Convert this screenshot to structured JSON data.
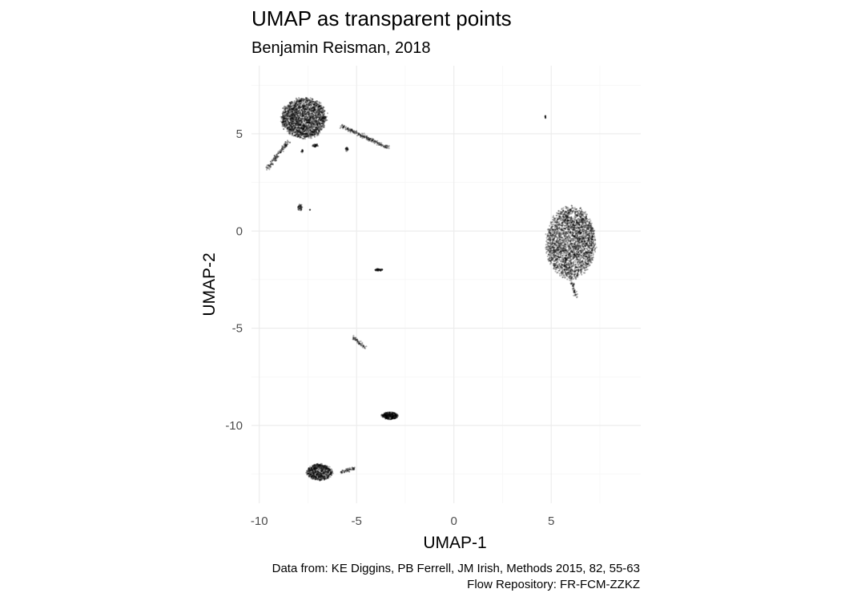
{
  "chart_data": {
    "type": "scatter",
    "title": "UMAP as transparent points",
    "subtitle": "Benjamin Reisman, 2018",
    "xlabel": "UMAP-1",
    "ylabel": "UMAP-2",
    "xlim": [
      -10.4,
      9.6
    ],
    "ylim": [
      -14.0,
      8.5
    ],
    "x_ticks": [
      -10,
      -5,
      0,
      5
    ],
    "x_tick_labels": [
      "-10",
      "-5",
      "0",
      "5"
    ],
    "y_ticks": [
      -10,
      -5,
      0,
      5
    ],
    "y_tick_labels": [
      "-10",
      "-5",
      "0",
      "5"
    ],
    "grid": true,
    "legend": "none",
    "point_color": "#000000",
    "caption": [
      "Data from: KE Diggins, PB Ferrell, JM Irish, Methods 2015, 82, 55-63",
      "Flow Repository: FR-FCM-ZZKZ"
    ],
    "clusters": [
      {
        "name": "top-left",
        "center": [
          -7.7,
          5.8
        ],
        "spread": [
          1.25,
          1.1
        ],
        "n": 2200
      },
      {
        "name": "top-left-tail",
        "from": [
          -8.5,
          4.6
        ],
        "to": [
          -9.6,
          3.2
        ],
        "n": 140
      },
      {
        "name": "top-left-arm",
        "from": [
          -5.8,
          5.4
        ],
        "to": [
          -3.4,
          4.3
        ],
        "n": 220
      },
      {
        "name": "top-left-spur-1",
        "center": [
          -7.1,
          4.4
        ],
        "spread": [
          0.18,
          0.08
        ],
        "n": 40
      },
      {
        "name": "top-left-spur-2",
        "center": [
          -5.5,
          4.2
        ],
        "spread": [
          0.08,
          0.12
        ],
        "n": 25
      },
      {
        "name": "top-left-spur-3",
        "center": [
          -7.8,
          4.1
        ],
        "spread": [
          0.05,
          0.1
        ],
        "n": 15
      },
      {
        "name": "right",
        "center": [
          6.0,
          -0.6
        ],
        "spread": [
          1.35,
          1.95
        ],
        "n": 2600
      },
      {
        "name": "right-tip",
        "from": [
          6.0,
          -2.4
        ],
        "to": [
          6.3,
          -3.4
        ],
        "n": 60
      },
      {
        "name": "right-small",
        "center": [
          4.7,
          5.85
        ],
        "spread": [
          0.02,
          0.08
        ],
        "n": 12
      },
      {
        "name": "small-1",
        "center": [
          -7.9,
          1.2
        ],
        "spread": [
          0.12,
          0.2
        ],
        "n": 45
      },
      {
        "name": "small-1b",
        "center": [
          -7.4,
          1.1
        ],
        "spread": [
          0.03,
          0.03
        ],
        "n": 4
      },
      {
        "name": "small-2",
        "center": [
          -3.85,
          -2.0
        ],
        "spread": [
          0.22,
          0.06
        ],
        "n": 60
      },
      {
        "name": "small-line",
        "from": [
          -5.2,
          -5.4
        ],
        "to": [
          -4.6,
          -6.0
        ],
        "n": 60
      },
      {
        "name": "lower-middle",
        "center": [
          -3.3,
          -9.5
        ],
        "spread": [
          0.45,
          0.2
        ],
        "n": 350
      },
      {
        "name": "bottom-left",
        "center": [
          -6.9,
          -12.4
        ],
        "spread": [
          0.7,
          0.45
        ],
        "n": 700
      },
      {
        "name": "bottom-left-tail",
        "from": [
          -5.8,
          -12.4
        ],
        "to": [
          -5.1,
          -12.2
        ],
        "n": 60
      }
    ]
  }
}
